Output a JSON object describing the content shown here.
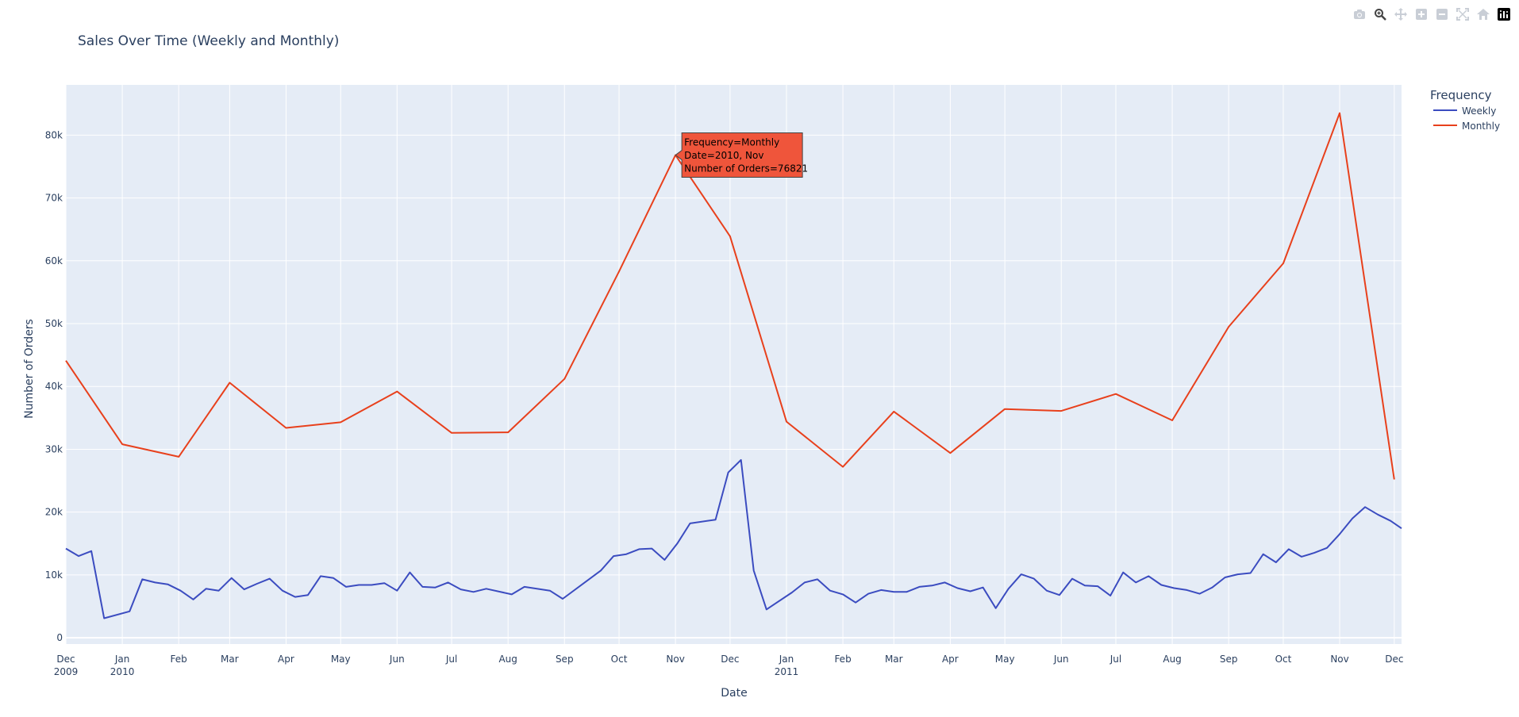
{
  "chart_data": {
    "type": "line",
    "title": "Sales Over Time (Weekly and Monthly)",
    "xlabel": "Date",
    "ylabel": "Number of Orders",
    "xlim": [
      "2009-12-01",
      "2011-12-05"
    ],
    "ylim": [
      -1000,
      88000
    ],
    "yticks": [
      0,
      10000,
      20000,
      30000,
      40000,
      50000,
      60000,
      70000,
      80000
    ],
    "ytick_labels": [
      "0",
      "10k",
      "20k",
      "30k",
      "40k",
      "50k",
      "60k",
      "70k",
      "80k"
    ],
    "xticks": [
      {
        "date": "2009-12-01",
        "line1": "Dec",
        "line2": "2009"
      },
      {
        "date": "2010-01-01",
        "line1": "Jan",
        "line2": "2010"
      },
      {
        "date": "2010-02-01",
        "line1": "Feb",
        "line2": ""
      },
      {
        "date": "2010-03-01",
        "line1": "Mar",
        "line2": ""
      },
      {
        "date": "2010-04-01",
        "line1": "Apr",
        "line2": ""
      },
      {
        "date": "2010-05-01",
        "line1": "May",
        "line2": ""
      },
      {
        "date": "2010-06-01",
        "line1": "Jun",
        "line2": ""
      },
      {
        "date": "2010-07-01",
        "line1": "Jul",
        "line2": ""
      },
      {
        "date": "2010-08-01",
        "line1": "Aug",
        "line2": ""
      },
      {
        "date": "2010-09-01",
        "line1": "Sep",
        "line2": ""
      },
      {
        "date": "2010-10-01",
        "line1": "Oct",
        "line2": ""
      },
      {
        "date": "2010-11-01",
        "line1": "Nov",
        "line2": ""
      },
      {
        "date": "2010-12-01",
        "line1": "Dec",
        "line2": ""
      },
      {
        "date": "2011-01-01",
        "line1": "Jan",
        "line2": "2011"
      },
      {
        "date": "2011-02-01",
        "line1": "Feb",
        "line2": ""
      },
      {
        "date": "2011-03-01",
        "line1": "Mar",
        "line2": ""
      },
      {
        "date": "2011-04-01",
        "line1": "Apr",
        "line2": ""
      },
      {
        "date": "2011-05-01",
        "line1": "May",
        "line2": ""
      },
      {
        "date": "2011-06-01",
        "line1": "Jun",
        "line2": ""
      },
      {
        "date": "2011-07-01",
        "line1": "Jul",
        "line2": ""
      },
      {
        "date": "2011-08-01",
        "line1": "Aug",
        "line2": ""
      },
      {
        "date": "2011-09-01",
        "line1": "Sep",
        "line2": ""
      },
      {
        "date": "2011-10-01",
        "line1": "Oct",
        "line2": ""
      },
      {
        "date": "2011-11-01",
        "line1": "Nov",
        "line2": ""
      },
      {
        "date": "2011-12-01",
        "line1": "Dec",
        "line2": ""
      }
    ],
    "grid": true,
    "legend": {
      "title": "Frequency",
      "placement": "top-right",
      "entries": [
        "Weekly",
        "Monthly"
      ]
    },
    "series": [
      {
        "name": "Weekly",
        "color": "#3b4cc0",
        "points": [
          {
            "x": "2009-12-01",
            "y": 14200
          },
          {
            "x": "2009-12-08",
            "y": 13000
          },
          {
            "x": "2009-12-15",
            "y": 13800
          },
          {
            "x": "2009-12-22",
            "y": 3100
          },
          {
            "x": "2010-01-05",
            "y": 4200
          },
          {
            "x": "2010-01-12",
            "y": 9300
          },
          {
            "x": "2010-01-19",
            "y": 8800
          },
          {
            "x": "2010-01-26",
            "y": 8500
          },
          {
            "x": "2010-02-02",
            "y": 7500
          },
          {
            "x": "2010-02-09",
            "y": 6100
          },
          {
            "x": "2010-02-16",
            "y": 7800
          },
          {
            "x": "2010-02-23",
            "y": 7500
          },
          {
            "x": "2010-03-02",
            "y": 9500
          },
          {
            "x": "2010-03-09",
            "y": 7700
          },
          {
            "x": "2010-03-16",
            "y": 8600
          },
          {
            "x": "2010-03-23",
            "y": 9400
          },
          {
            "x": "2010-03-30",
            "y": 7500
          },
          {
            "x": "2010-04-06",
            "y": 6500
          },
          {
            "x": "2010-04-13",
            "y": 6800
          },
          {
            "x": "2010-04-20",
            "y": 9800
          },
          {
            "x": "2010-04-27",
            "y": 9500
          },
          {
            "x": "2010-05-04",
            "y": 8100
          },
          {
            "x": "2010-05-11",
            "y": 8400
          },
          {
            "x": "2010-05-18",
            "y": 8400
          },
          {
            "x": "2010-05-25",
            "y": 8700
          },
          {
            "x": "2010-06-01",
            "y": 7500
          },
          {
            "x": "2010-06-08",
            "y": 10400
          },
          {
            "x": "2010-06-15",
            "y": 8100
          },
          {
            "x": "2010-06-22",
            "y": 8000
          },
          {
            "x": "2010-06-29",
            "y": 8800
          },
          {
            "x": "2010-07-06",
            "y": 7700
          },
          {
            "x": "2010-07-13",
            "y": 7300
          },
          {
            "x": "2010-07-20",
            "y": 7800
          },
          {
            "x": "2010-08-03",
            "y": 6900
          },
          {
            "x": "2010-08-10",
            "y": 8100
          },
          {
            "x": "2010-08-24",
            "y": 7500
          },
          {
            "x": "2010-08-31",
            "y": 6200
          },
          {
            "x": "2010-09-14",
            "y": 9200
          },
          {
            "x": "2010-09-21",
            "y": 10700
          },
          {
            "x": "2010-09-28",
            "y": 13000
          },
          {
            "x": "2010-10-05",
            "y": 13300
          },
          {
            "x": "2010-10-12",
            "y": 14100
          },
          {
            "x": "2010-10-19",
            "y": 14200
          },
          {
            "x": "2010-10-26",
            "y": 12400
          },
          {
            "x": "2010-11-02",
            "y": 15000
          },
          {
            "x": "2010-11-09",
            "y": 18200
          },
          {
            "x": "2010-11-23",
            "y": 18800
          },
          {
            "x": "2010-11-30",
            "y": 26300
          },
          {
            "x": "2010-12-07",
            "y": 28300
          },
          {
            "x": "2010-12-14",
            "y": 10700
          },
          {
            "x": "2010-12-21",
            "y": 4500
          },
          {
            "x": "2011-01-04",
            "y": 7200
          },
          {
            "x": "2011-01-11",
            "y": 8800
          },
          {
            "x": "2011-01-18",
            "y": 9300
          },
          {
            "x": "2011-01-25",
            "y": 7500
          },
          {
            "x": "2011-02-01",
            "y": 6900
          },
          {
            "x": "2011-02-08",
            "y": 5600
          },
          {
            "x": "2011-02-15",
            "y": 7000
          },
          {
            "x": "2011-02-22",
            "y": 7600
          },
          {
            "x": "2011-03-01",
            "y": 7300
          },
          {
            "x": "2011-03-08",
            "y": 7300
          },
          {
            "x": "2011-03-15",
            "y": 8100
          },
          {
            "x": "2011-03-22",
            "y": 8300
          },
          {
            "x": "2011-03-29",
            "y": 8800
          },
          {
            "x": "2011-04-05",
            "y": 7900
          },
          {
            "x": "2011-04-12",
            "y": 7400
          },
          {
            "x": "2011-04-19",
            "y": 8000
          },
          {
            "x": "2011-04-26",
            "y": 4700
          },
          {
            "x": "2011-05-03",
            "y": 7800
          },
          {
            "x": "2011-05-10",
            "y": 10100
          },
          {
            "x": "2011-05-17",
            "y": 9400
          },
          {
            "x": "2011-05-24",
            "y": 7500
          },
          {
            "x": "2011-05-31",
            "y": 6800
          },
          {
            "x": "2011-06-07",
            "y": 9400
          },
          {
            "x": "2011-06-14",
            "y": 8300
          },
          {
            "x": "2011-06-21",
            "y": 8200
          },
          {
            "x": "2011-06-28",
            "y": 6700
          },
          {
            "x": "2011-07-05",
            "y": 10400
          },
          {
            "x": "2011-07-12",
            "y": 8800
          },
          {
            "x": "2011-07-19",
            "y": 9800
          },
          {
            "x": "2011-07-26",
            "y": 8400
          },
          {
            "x": "2011-08-02",
            "y": 7900
          },
          {
            "x": "2011-08-09",
            "y": 7600
          },
          {
            "x": "2011-08-16",
            "y": 7000
          },
          {
            "x": "2011-08-23",
            "y": 8000
          },
          {
            "x": "2011-08-30",
            "y": 9600
          },
          {
            "x": "2011-09-06",
            "y": 10100
          },
          {
            "x": "2011-09-13",
            "y": 10300
          },
          {
            "x": "2011-09-20",
            "y": 13300
          },
          {
            "x": "2011-09-27",
            "y": 12000
          },
          {
            "x": "2011-10-04",
            "y": 14100
          },
          {
            "x": "2011-10-11",
            "y": 12900
          },
          {
            "x": "2011-10-18",
            "y": 13500
          },
          {
            "x": "2011-10-25",
            "y": 14300
          },
          {
            "x": "2011-11-01",
            "y": 16500
          },
          {
            "x": "2011-11-08",
            "y": 19000
          },
          {
            "x": "2011-11-15",
            "y": 20800
          },
          {
            "x": "2011-11-22",
            "y": 19600
          },
          {
            "x": "2011-11-29",
            "y": 18600
          },
          {
            "x": "2011-12-05",
            "y": 17400
          }
        ]
      },
      {
        "name": "Monthly",
        "color": "#e8401c",
        "points": [
          {
            "x": "2009-12-01",
            "y": 44100
          },
          {
            "x": "2010-01-01",
            "y": 30800
          },
          {
            "x": "2010-02-01",
            "y": 28800
          },
          {
            "x": "2010-03-01",
            "y": 40600
          },
          {
            "x": "2010-04-01",
            "y": 33400
          },
          {
            "x": "2010-05-01",
            "y": 34300
          },
          {
            "x": "2010-06-01",
            "y": 39200
          },
          {
            "x": "2010-07-01",
            "y": 32600
          },
          {
            "x": "2010-08-01",
            "y": 32700
          },
          {
            "x": "2010-09-01",
            "y": 41200
          },
          {
            "x": "2010-10-01",
            "y": 58300
          },
          {
            "x": "2010-11-01",
            "y": 76821
          },
          {
            "x": "2010-12-01",
            "y": 63900
          },
          {
            "x": "2011-01-01",
            "y": 34400
          },
          {
            "x": "2011-02-01",
            "y": 27200
          },
          {
            "x": "2011-03-01",
            "y": 36000
          },
          {
            "x": "2011-04-01",
            "y": 29400
          },
          {
            "x": "2011-05-01",
            "y": 36400
          },
          {
            "x": "2011-06-01",
            "y": 36100
          },
          {
            "x": "2011-07-01",
            "y": 38800
          },
          {
            "x": "2011-08-01",
            "y": 34600
          },
          {
            "x": "2011-09-01",
            "y": 49500
          },
          {
            "x": "2011-10-01",
            "y": 59600
          },
          {
            "x": "2011-11-01",
            "y": 83500
          },
          {
            "x": "2011-12-01",
            "y": 25200
          }
        ]
      }
    ],
    "hover_label": {
      "series": "Monthly",
      "x": "2010-11-01",
      "y": 76821,
      "lines": [
        "Frequency=Monthly",
        "Date=2010, Nov",
        "Number of Orders=76821"
      ],
      "color": "#ef553b"
    }
  },
  "colors": {
    "plot_bg": "#e5ecf6",
    "grid": "#ffffff",
    "text": "#2a3f5f"
  },
  "modebar": {
    "buttons": [
      "camera-icon",
      "zoom-icon",
      "pan-icon",
      "zoom-in-icon",
      "zoom-out-icon",
      "autoscale-icon",
      "reset-axes-icon",
      "plotly-logo-icon"
    ]
  }
}
